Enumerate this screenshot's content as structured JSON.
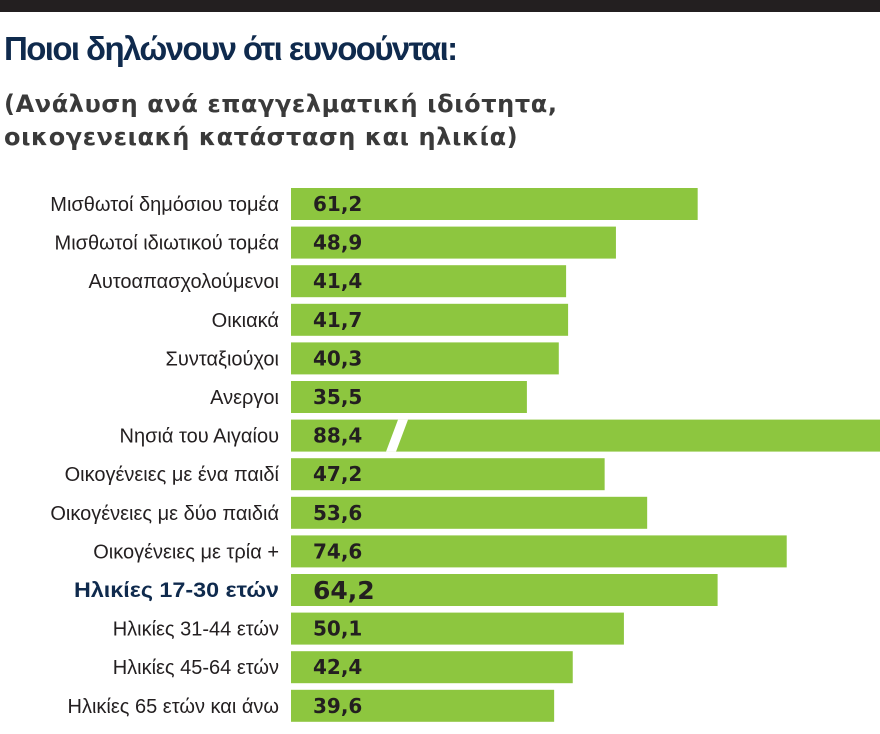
{
  "header": {
    "title": "Ποιοι δηλώνουν ότι ευνοούνται:",
    "subtitle_line1": "(Ανάλυση ανά επαγγελματική ιδιότητα,",
    "subtitle_line2": "οικογενειακή κατάσταση και ηλικία)"
  },
  "colors": {
    "bar": "#8dc63f",
    "bar_text": "#231f20",
    "label": "#231f20",
    "highlight_label": "#0f2a4d",
    "top_bar": "#231f20"
  },
  "chart_data": {
    "type": "bar",
    "orientation": "horizontal",
    "title": "Ποιοι δηλώνουν ότι ευνοούνται:",
    "subtitle": "(Ανάλυση ανά επαγγελματική ιδιότητα, οικογενειακή κατάσταση και ηλικία)",
    "xlabel": "",
    "ylabel": "",
    "grid": false,
    "categories": [
      "Μισθωτοί δημόσιου τομέα",
      "Μισθωτοί ιδιωτικού τομέα",
      "Αυτοαπασχολούμενοι",
      "Οικιακά",
      "Συνταξιούχοι",
      "Ανεργοι",
      "Νησιά του Αιγαίου",
      "Οικογένειες με ένα παιδί",
      "Οικογένειες με δύο παιδιά",
      "Οικογένειες με τρία +",
      "Ηλικίες 17-30 ετών",
      "Ηλικίες 31-44 ετών",
      "Ηλικίες 45-64 ετών",
      "Ηλικίες 65 ετών και άνω"
    ],
    "values": [
      61.2,
      48.9,
      41.4,
      41.7,
      40.3,
      35.5,
      88.4,
      47.2,
      53.6,
      74.6,
      64.2,
      50.1,
      42.4,
      39.6
    ],
    "value_labels": [
      "61,2",
      "48,9",
      "41,4",
      "41,7",
      "40,3",
      "35,5",
      "88,4",
      "47,2",
      "53,6",
      "74,6",
      "64,2",
      "50,1",
      "42,4",
      "39,6"
    ],
    "highlight_index": 10,
    "broken_bar_index": 6
  }
}
